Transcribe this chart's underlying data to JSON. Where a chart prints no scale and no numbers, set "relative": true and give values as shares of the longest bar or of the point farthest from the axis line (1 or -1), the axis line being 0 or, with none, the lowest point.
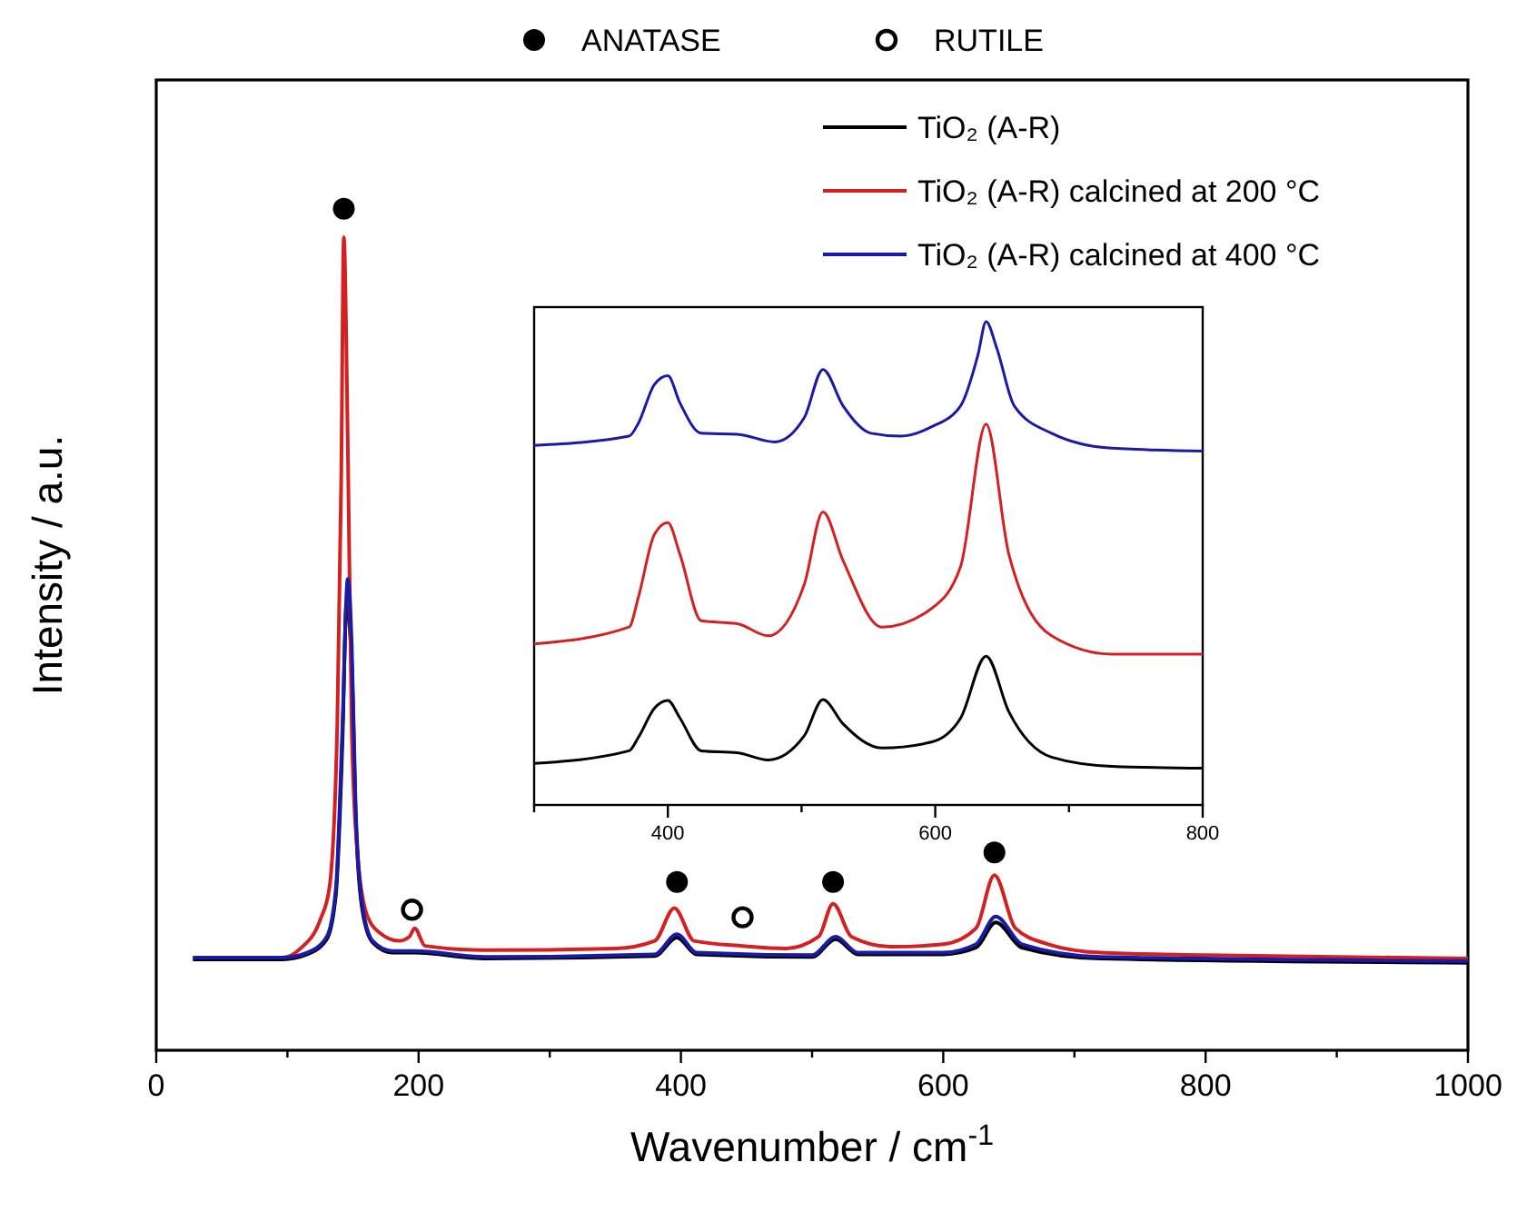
{
  "chart_data": [
    {
      "type": "line",
      "relative": true,
      "xlabel": "Wavenumber / cm$^{-1}$",
      "ylabel": "Intensity / a.u.",
      "xlim": [
        0,
        1000
      ],
      "xticks": [
        0,
        {
          "value": 100,
          "label": null
        },
        200,
        {
          "value": 300,
          "label": null
        },
        400,
        {
          "value": 500,
          "label": null
        },
        600,
        {
          "value": 700,
          "label": null
        },
        800,
        {
          "value": 900,
          "label": null
        },
        1000
      ],
      "tick_labels": "x",
      "legend": "top right",
      "grid": false,
      "line_style": "solid",
      "series": [
        {
          "name": "TiO₂ (A-R)",
          "color": "#000000",
          "x": [
            28,
            96,
            115,
            130,
            137,
            142,
            145,
            149,
            152,
            157,
            165,
            180,
            197,
            250,
            380,
            397,
            412,
            500,
            518,
            535,
            600,
            625,
            640,
            660,
            720,
            1000
          ],
          "values": [
            0.108,
            0.108,
            0.114,
            0.132,
            0.186,
            0.37,
            0.53,
            0.46,
            0.28,
            0.168,
            0.128,
            0.116,
            0.116,
            0.109,
            0.112,
            0.134,
            0.114,
            0.111,
            0.132,
            0.114,
            0.114,
            0.122,
            0.152,
            0.122,
            0.109,
            0.104
          ]
        },
        {
          "name": "TiO₂ (A-R) calcined at 200 °C",
          "color": "#d42020",
          "x": [
            28,
            96,
            110,
            125,
            132,
            138,
            141,
            143,
            146,
            149,
            153,
            160,
            170,
            185,
            193,
            197,
            205,
            250,
            350,
            380,
            395,
            410,
            447,
            480,
            505,
            516,
            530,
            560,
            600,
            625,
            639,
            655,
            680,
            720,
            800,
            1000
          ],
          "values": [
            0.11,
            0.11,
            0.121,
            0.155,
            0.193,
            0.386,
            0.676,
            0.966,
            0.725,
            0.386,
            0.242,
            0.164,
            0.14,
            0.13,
            0.135,
            0.145,
            0.124,
            0.119,
            0.121,
            0.13,
            0.169,
            0.13,
            0.124,
            0.121,
            0.135,
            0.174,
            0.135,
            0.123,
            0.126,
            0.145,
            0.208,
            0.145,
            0.126,
            0.116,
            0.113,
            0.109
          ]
        },
        {
          "name": "TiO₂ (A-R) calcined at 400 °C",
          "color": "#1a1aa8",
          "x": [
            28,
            96,
            115,
            130,
            137,
            142,
            146,
            149,
            152,
            157,
            165,
            180,
            197,
            250,
            380,
            397,
            412,
            500,
            518,
            535,
            600,
            625,
            640,
            660,
            720,
            1000
          ],
          "values": [
            0.11,
            0.11,
            0.116,
            0.135,
            0.193,
            0.386,
            0.56,
            0.483,
            0.29,
            0.174,
            0.13,
            0.118,
            0.118,
            0.111,
            0.114,
            0.138,
            0.116,
            0.113,
            0.135,
            0.116,
            0.116,
            0.126,
            0.159,
            0.126,
            0.111,
            0.106
          ]
        },
        {
          "name": "ANATASE",
          "type": "scatter",
          "marker": "circle",
          "color": "#000000",
          "x": [
            143,
            397,
            516,
            639
          ],
          "values": [
            1.0,
            0.2,
            0.2,
            0.235
          ]
        },
        {
          "name": "RUTILE",
          "type": "scatter",
          "marker": "circle",
          "color": "#ffffff",
          "x": [
            195,
            447
          ],
          "values": [
            0.167,
            0.158
          ]
        }
      ]
    },
    {
      "type": "line",
      "relative": true,
      "xlim": [
        300,
        800
      ],
      "xticks": [
        {
          "value": 300,
          "label": null
        },
        400,
        {
          "value": 500,
          "label": null
        },
        600,
        {
          "value": 700,
          "label": null
        },
        800
      ],
      "tick_labels": "x",
      "grid": false,
      "series": [
        {
          "color": "#000000",
          "x": [
            300,
            371,
            378,
            390,
            400,
            409,
            425,
            452,
            475,
            502,
            516,
            531,
            560,
            597,
            619,
            638,
            655,
            687,
            732,
            800
          ],
          "values": [
            0.086,
            0.112,
            0.14,
            0.2,
            0.216,
            0.18,
            0.112,
            0.108,
            0.093,
            0.143,
            0.218,
            0.168,
            0.118,
            0.13,
            0.18,
            0.308,
            0.193,
            0.099,
            0.08,
            0.076
          ]
        },
        {
          "color": "#d42020",
          "x": [
            300,
            371,
            378,
            390,
            400,
            409,
            425,
            452,
            475,
            502,
            516,
            531,
            560,
            597,
            619,
            638,
            655,
            687,
            732,
            800
          ],
          "values": [
            0.333,
            0.368,
            0.43,
            0.56,
            0.584,
            0.519,
            0.381,
            0.375,
            0.35,
            0.456,
            0.606,
            0.506,
            0.368,
            0.406,
            0.494,
            0.788,
            0.519,
            0.35,
            0.312,
            0.312
          ]
        },
        {
          "color": "#1a1aa8",
          "x": [
            300,
            371,
            378,
            390,
            400,
            409,
            425,
            452,
            480,
            502,
            516,
            531,
            552,
            574,
            597,
            619,
            632,
            638,
            646,
            659,
            687,
            732,
            800
          ],
          "values": [
            0.744,
            0.763,
            0.79,
            0.87,
            0.888,
            0.832,
            0.769,
            0.767,
            0.751,
            0.801,
            0.901,
            0.826,
            0.769,
            0.763,
            0.782,
            0.826,
            0.932,
            1.0,
            0.945,
            0.826,
            0.769,
            0.738,
            0.732
          ]
        }
      ]
    }
  ]
}
